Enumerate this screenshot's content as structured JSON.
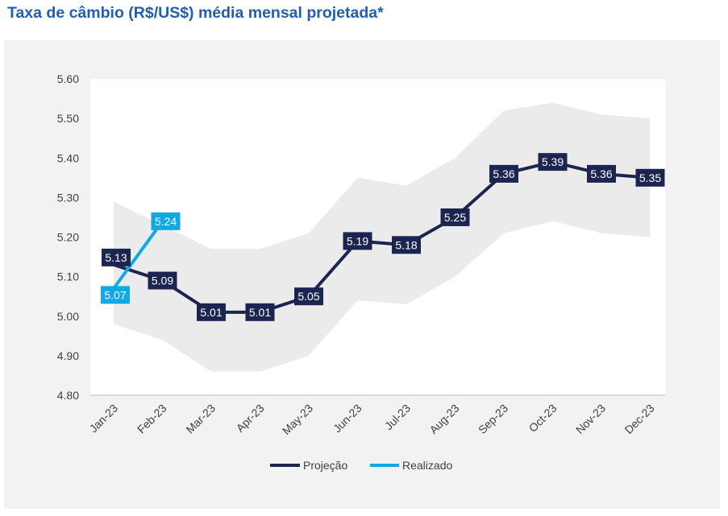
{
  "title": "Taxa de câmbio (R$/US$) média mensal projetada*",
  "colors": {
    "projecao": "#1c2550",
    "realizado": "#10a9e6",
    "band": "#ebebeb",
    "title": "#1f5fad"
  },
  "chart_data": {
    "type": "line",
    "title": "Taxa de câmbio (R$/US$) média mensal projetada*",
    "categories": [
      "Jan-23",
      "Feb-23",
      "Mar-23",
      "Apr-23",
      "May-23",
      "Jun-23",
      "Jul-23",
      "Aug-23",
      "Sep-23",
      "Oct-23",
      "Nov-23",
      "Dec-23"
    ],
    "ylim": [
      4.8,
      5.6
    ],
    "yticks": [
      "5.60",
      "5.50",
      "5.40",
      "5.30",
      "5.20",
      "5.10",
      "5.00",
      "4.90",
      "4.80"
    ],
    "grid": false,
    "legend_position": "bottom",
    "series": [
      {
        "name": "Projeção",
        "values": [
          5.13,
          5.09,
          5.01,
          5.01,
          5.05,
          5.19,
          5.18,
          5.25,
          5.36,
          5.39,
          5.36,
          5.35
        ],
        "labels": [
          "5.13",
          "5.09",
          "5.01",
          "5.01",
          "5.05",
          "5.19",
          "5.18",
          "5.25",
          "5.36",
          "5.39",
          "5.36",
          "5.35"
        ]
      },
      {
        "name": "Realizado",
        "values": [
          5.07,
          5.24,
          null,
          null,
          null,
          null,
          null,
          null,
          null,
          null,
          null,
          null
        ],
        "labels": [
          "5.07",
          "5.24"
        ]
      }
    ],
    "band": {
      "upper": [
        5.29,
        5.23,
        5.17,
        5.17,
        5.21,
        5.35,
        5.33,
        5.4,
        5.52,
        5.54,
        5.51,
        5.5
      ],
      "lower": [
        4.98,
        4.94,
        4.86,
        4.86,
        4.9,
        5.04,
        5.03,
        5.1,
        5.21,
        5.24,
        5.21,
        5.2
      ]
    }
  }
}
